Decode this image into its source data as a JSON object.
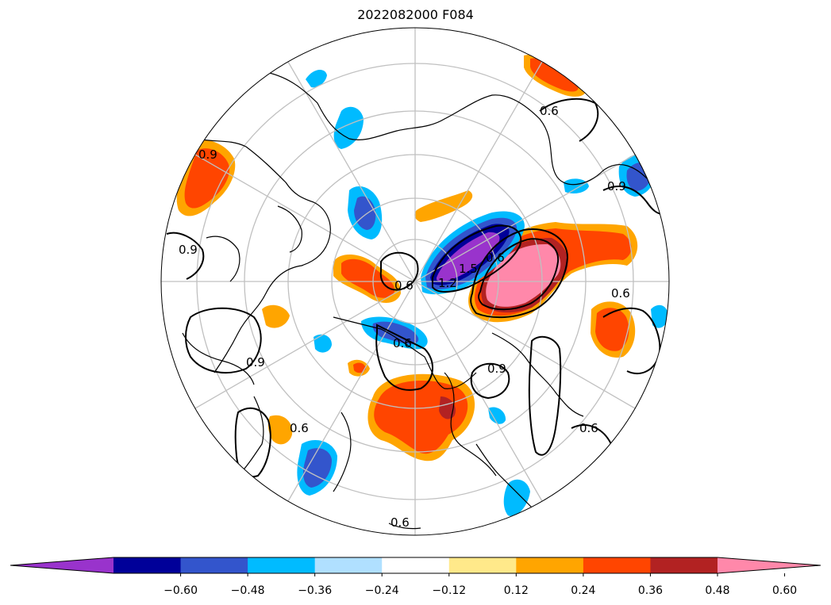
{
  "title": "2022082000 F084",
  "colorbar": {
    "colors": [
      "#9933cc",
      "#000099",
      "#3355cc",
      "#00bbff",
      "#b0e0ff",
      "#ffffff",
      "#ffe98a",
      "#ffa500",
      "#ff4500",
      "#b22222",
      "#ff88aa"
    ],
    "ticks": [
      "−0.60",
      "−0.48",
      "−0.36",
      "−0.24",
      "−0.12",
      "0.12",
      "0.24",
      "0.36",
      "0.48",
      "0.60"
    ],
    "extend": "both"
  },
  "projection": "north-polar-stereographic",
  "contour_labels": [
    "0.6",
    "0.6",
    "0.9",
    "0.6",
    "0.9",
    "1.5",
    "1.2",
    "0.9",
    "0.6",
    "0.6",
    "0.9",
    "0.6",
    "0.6",
    "0.9",
    "0.6"
  ]
}
